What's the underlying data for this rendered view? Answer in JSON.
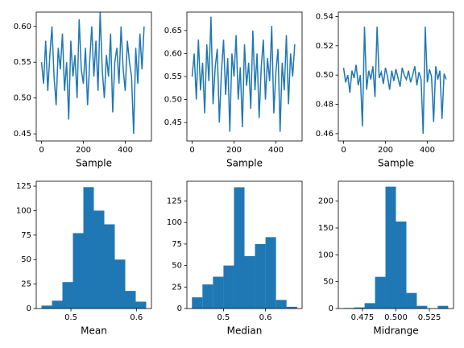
{
  "chart_data": [
    {
      "type": "line",
      "xlabel": "Sample",
      "color": "#1f77b4",
      "x": [
        0,
        10,
        20,
        30,
        40,
        50,
        60,
        70,
        80,
        90,
        100,
        110,
        120,
        130,
        140,
        150,
        160,
        170,
        180,
        190,
        200,
        210,
        220,
        230,
        240,
        250,
        260,
        270,
        280,
        290,
        300,
        310,
        320,
        330,
        340,
        350,
        360,
        370,
        380,
        390,
        400,
        410,
        420,
        430,
        440,
        450,
        460,
        470,
        480,
        490
      ],
      "values": [
        0.55,
        0.52,
        0.58,
        0.51,
        0.56,
        0.6,
        0.53,
        0.49,
        0.57,
        0.54,
        0.59,
        0.51,
        0.55,
        0.47,
        0.58,
        0.53,
        0.56,
        0.5,
        0.61,
        0.54,
        0.52,
        0.57,
        0.49,
        0.55,
        0.6,
        0.53,
        0.58,
        0.51,
        0.62,
        0.54,
        0.5,
        0.56,
        0.53,
        0.59,
        0.48,
        0.55,
        0.57,
        0.52,
        0.6,
        0.54,
        0.51,
        0.58,
        0.55,
        0.53,
        0.45,
        0.57,
        0.52,
        0.59,
        0.54,
        0.6
      ],
      "xlim": [
        -25,
        525
      ],
      "xticks": [
        0,
        200,
        400
      ],
      "ylim": [
        0.44,
        0.62
      ],
      "yticks": [
        0.45,
        {
          "value": 0.5,
          "label": "0.50"
        },
        0.55,
        {
          "value": 0.6,
          "label": "0.60"
        }
      ]
    },
    {
      "type": "line",
      "xlabel": "Sample",
      "color": "#1f77b4",
      "x": [
        0,
        10,
        20,
        30,
        40,
        50,
        60,
        70,
        80,
        90,
        100,
        110,
        120,
        130,
        140,
        150,
        160,
        170,
        180,
        190,
        200,
        210,
        220,
        230,
        240,
        250,
        260,
        270,
        280,
        290,
        300,
        310,
        320,
        330,
        340,
        350,
        360,
        370,
        380,
        390,
        400,
        410,
        420,
        430,
        440,
        450,
        460,
        470,
        480,
        490
      ],
      "values": [
        0.55,
        0.6,
        0.5,
        0.63,
        0.52,
        0.58,
        0.47,
        0.62,
        0.54,
        0.68,
        0.49,
        0.57,
        0.61,
        0.45,
        0.56,
        0.63,
        0.51,
        0.59,
        0.43,
        0.6,
        0.55,
        0.64,
        0.5,
        0.57,
        0.44,
        0.62,
        0.53,
        0.58,
        0.48,
        0.65,
        0.52,
        0.6,
        0.46,
        0.57,
        0.63,
        0.5,
        0.59,
        0.54,
        0.66,
        0.47,
        0.56,
        0.61,
        0.43,
        0.58,
        0.52,
        0.64,
        0.49,
        0.6,
        0.55,
        0.62
      ],
      "xlim": [
        -25,
        525
      ],
      "xticks": [
        0,
        200,
        400
      ],
      "ylim": [
        0.41,
        0.69
      ],
      "yticks": [
        0.45,
        {
          "value": 0.5,
          "label": "0.50"
        },
        0.55,
        {
          "value": 0.6,
          "label": "0.60"
        },
        0.65
      ]
    },
    {
      "type": "line",
      "xlabel": "Sample",
      "color": "#1f77b4",
      "x": [
        0,
        10,
        20,
        30,
        40,
        50,
        60,
        70,
        80,
        90,
        100,
        110,
        120,
        130,
        140,
        150,
        160,
        170,
        180,
        190,
        200,
        210,
        220,
        230,
        240,
        250,
        260,
        270,
        280,
        290,
        300,
        310,
        320,
        330,
        340,
        350,
        360,
        370,
        380,
        390,
        400,
        410,
        420,
        430,
        440,
        450,
        460,
        470,
        480,
        490
      ],
      "values": [
        0.505,
        0.495,
        0.5,
        0.488,
        0.503,
        0.498,
        0.507,
        0.493,
        0.5,
        0.465,
        0.533,
        0.49,
        0.503,
        0.497,
        0.506,
        0.485,
        0.533,
        0.498,
        0.502,
        0.494,
        0.505,
        0.499,
        0.49,
        0.503,
        0.496,
        0.504,
        0.498,
        0.492,
        0.505,
        0.5,
        0.497,
        0.503,
        0.495,
        0.5,
        0.506,
        0.493,
        0.502,
        0.497,
        0.46,
        0.533,
        0.495,
        0.504,
        0.499,
        0.468,
        0.506,
        0.497,
        0.503,
        0.47,
        0.501,
        0.497
      ],
      "xlim": [
        -25,
        525
      ],
      "xticks": [
        0,
        200,
        400
      ],
      "ylim": [
        0.455,
        0.543
      ],
      "yticks": [
        0.46,
        0.48,
        {
          "value": 0.5,
          "label": "0.50"
        },
        0.52,
        0.54
      ]
    },
    {
      "type": "histogram",
      "xlabel": "Mean",
      "color": "#1f77b4",
      "bins": [
        0.455,
        0.471,
        0.487,
        0.503,
        0.519,
        0.535,
        0.551,
        0.567,
        0.583,
        0.599,
        0.615
      ],
      "values": [
        3,
        8,
        27,
        77,
        124,
        100,
        86,
        50,
        18,
        7
      ],
      "xlim": [
        0.447,
        0.623
      ],
      "xticks": [
        0.5,
        0.6
      ],
      "ylim": [
        0,
        130
      ],
      "yticks": [
        0,
        25,
        50,
        75,
        100,
        125
      ]
    },
    {
      "type": "histogram",
      "xlabel": "Median",
      "color": "#1f77b4",
      "bins": [
        0.425,
        0.45,
        0.475,
        0.5,
        0.525,
        0.55,
        0.575,
        0.6,
        0.625,
        0.65,
        0.675
      ],
      "values": [
        13,
        28,
        37,
        50,
        141,
        61,
        75,
        83,
        10,
        2
      ],
      "xlim": [
        0.413,
        0.687
      ],
      "xticks": [
        0.5,
        0.6
      ],
      "ylim": [
        0,
        148
      ],
      "yticks": [
        0,
        25,
        50,
        75,
        100,
        125
      ]
    },
    {
      "type": "histogram",
      "xlabel": "Midrange",
      "color": "#1f77b4",
      "bins": [
        0.461,
        0.4688,
        0.4766,
        0.4844,
        0.4922,
        0.5,
        0.5078,
        0.5156,
        0.5234,
        0.5312,
        0.539
      ],
      "values": [
        1,
        2,
        10,
        59,
        227,
        162,
        29,
        5,
        0,
        5
      ],
      "xlim": [
        0.457,
        0.543
      ],
      "xticks": [
        {
          "value": 0.475,
          "label": "0.475"
        },
        {
          "value": 0.5,
          "label": "0.500"
        },
        {
          "value": 0.525,
          "label": "0.525"
        }
      ],
      "ylim": [
        0,
        237
      ],
      "yticks": [
        0,
        50,
        100,
        150,
        200
      ]
    }
  ]
}
